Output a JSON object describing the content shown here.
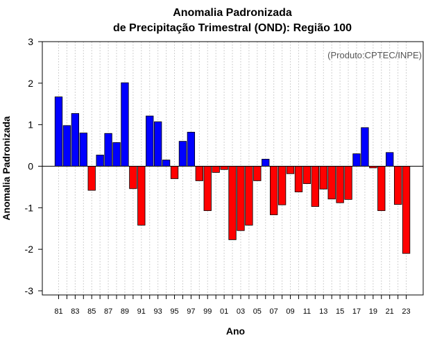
{
  "chart_data": {
    "type": "bar",
    "title": "Anomalia Padronizada",
    "subtitle": "de Precipitação Trimestral (OND): Região 100",
    "xlabel": "Ano",
    "ylabel": "Anomalia Padronizada",
    "annotation": "(Produto:CPTEC/INPE)",
    "ylim": [
      -3.1,
      3.0
    ],
    "yticks": [
      -3,
      -2,
      -1,
      0,
      1,
      2,
      3
    ],
    "positive_color": "#0000ff",
    "negative_color": "#ff0000",
    "categories": [
      "81",
      "82",
      "83",
      "84",
      "85",
      "86",
      "87",
      "88",
      "89",
      "90",
      "91",
      "92",
      "93",
      "94",
      "95",
      "96",
      "97",
      "98",
      "99",
      "00",
      "01",
      "02",
      "03",
      "04",
      "05",
      "06",
      "07",
      "08",
      "09",
      "10",
      "11",
      "12",
      "13",
      "14",
      "15",
      "16",
      "17",
      "18",
      "19",
      "20",
      "21",
      "22",
      "23"
    ],
    "xtick_labels": [
      "81",
      "83",
      "85",
      "87",
      "89",
      "91",
      "93",
      "95",
      "97",
      "99",
      "01",
      "03",
      "05",
      "07",
      "09",
      "11",
      "13",
      "15",
      "17",
      "19",
      "21",
      "23"
    ],
    "values": [
      1.67,
      0.98,
      1.27,
      0.8,
      -0.58,
      0.27,
      0.79,
      0.57,
      2.01,
      -0.54,
      -1.42,
      1.21,
      1.07,
      0.15,
      -0.3,
      0.6,
      0.82,
      -0.35,
      -1.07,
      -0.15,
      -0.08,
      -1.77,
      -1.55,
      -1.42,
      -0.35,
      0.17,
      -1.17,
      -0.93,
      -0.18,
      -0.62,
      -0.42,
      -0.97,
      -0.55,
      -0.79,
      -0.88,
      -0.8,
      0.3,
      0.93,
      -0.04,
      -1.07,
      0.33,
      -0.92,
      -2.1
    ]
  }
}
